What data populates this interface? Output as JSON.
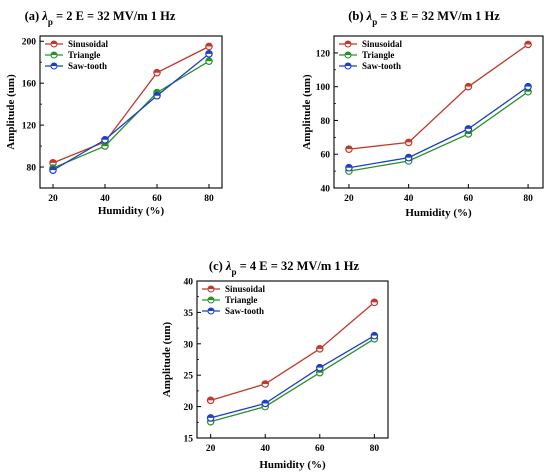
{
  "chart_data": [
    {
      "type": "line",
      "title": "(a) λp = 2  E = 32 MV/m  1 Hz",
      "title_parts": {
        "prefix": "(a) ",
        "symbol": "λ",
        "subscript": "p",
        "suffix": " = 2  E = 32 MV/m  1 Hz"
      },
      "xlabel": "Humidity (%)",
      "ylabel": "Amplitude (um)",
      "x": [
        20,
        40,
        60,
        80
      ],
      "x_ticks": [
        "20",
        "40",
        "60",
        "80"
      ],
      "y_ticks": [
        "80",
        "120",
        "160",
        "200"
      ],
      "xlim": [
        15,
        85
      ],
      "ylim": [
        60,
        205
      ],
      "y_tick_values": [
        80,
        120,
        160,
        200
      ],
      "legend_position": "top-left",
      "series": [
        {
          "name": "Sinusoidal",
          "color": "#c0392b",
          "values": [
            84,
            104,
            170,
            195
          ]
        },
        {
          "name": "Triangle",
          "color": "#27922b",
          "values": [
            79,
            100,
            151,
            181
          ]
        },
        {
          "name": "Saw-tooth",
          "color": "#1f3fc4",
          "values": [
            77,
            106,
            148,
            188
          ]
        }
      ]
    },
    {
      "type": "line",
      "title": "(b) λp = 3  E = 32 MV/m  1 Hz",
      "title_parts": {
        "prefix": "(b) ",
        "symbol": "λ",
        "subscript": "p",
        "suffix": " = 3  E = 32 MV/m  1 Hz"
      },
      "xlabel": "Humidity (%)",
      "ylabel": "Amplitude (um)",
      "x": [
        20,
        40,
        60,
        80
      ],
      "x_ticks": [
        "20",
        "40",
        "60",
        "80"
      ],
      "y_ticks": [
        "40",
        "60",
        "80",
        "100",
        "120"
      ],
      "xlim": [
        15,
        85
      ],
      "ylim": [
        40,
        130
      ],
      "y_tick_values": [
        40,
        60,
        80,
        100,
        120
      ],
      "legend_position": "top-left",
      "series": [
        {
          "name": "Sinusoidal",
          "color": "#c0392b",
          "values": [
            63,
            67,
            100,
            125
          ]
        },
        {
          "name": "Triangle",
          "color": "#27922b",
          "values": [
            50,
            56,
            72,
            97
          ]
        },
        {
          "name": "Saw-tooth",
          "color": "#1f3fc4",
          "values": [
            52,
            58,
            75,
            100
          ]
        }
      ]
    },
    {
      "type": "line",
      "title": "(c) λp = 4  E = 32 MV/m  1 Hz",
      "title_parts": {
        "prefix": "(c) ",
        "symbol": "λ",
        "subscript": "p",
        "suffix": " = 4  E = 32 MV/m  1 Hz"
      },
      "xlabel": "Humidity (%)",
      "ylabel": "Amplitude (um)",
      "x": [
        20,
        40,
        60,
        80
      ],
      "x_ticks": [
        "20",
        "40",
        "60",
        "80"
      ],
      "y_ticks": [
        "15",
        "20",
        "25",
        "30",
        "35",
        "40"
      ],
      "xlim": [
        15,
        85
      ],
      "ylim": [
        15,
        40
      ],
      "y_tick_values": [
        15,
        20,
        25,
        30,
        35,
        40
      ],
      "legend_position": "top-left",
      "series": [
        {
          "name": "Sinusoidal",
          "color": "#c0392b",
          "values": [
            21,
            23.6,
            29.2,
            36.6
          ]
        },
        {
          "name": "Triangle",
          "color": "#27922b",
          "values": [
            17.6,
            20,
            25.4,
            30.8
          ]
        },
        {
          "name": "Saw-tooth",
          "color": "#1f3fc4",
          "values": [
            18.2,
            20.5,
            26.2,
            31.3
          ]
        }
      ]
    }
  ]
}
